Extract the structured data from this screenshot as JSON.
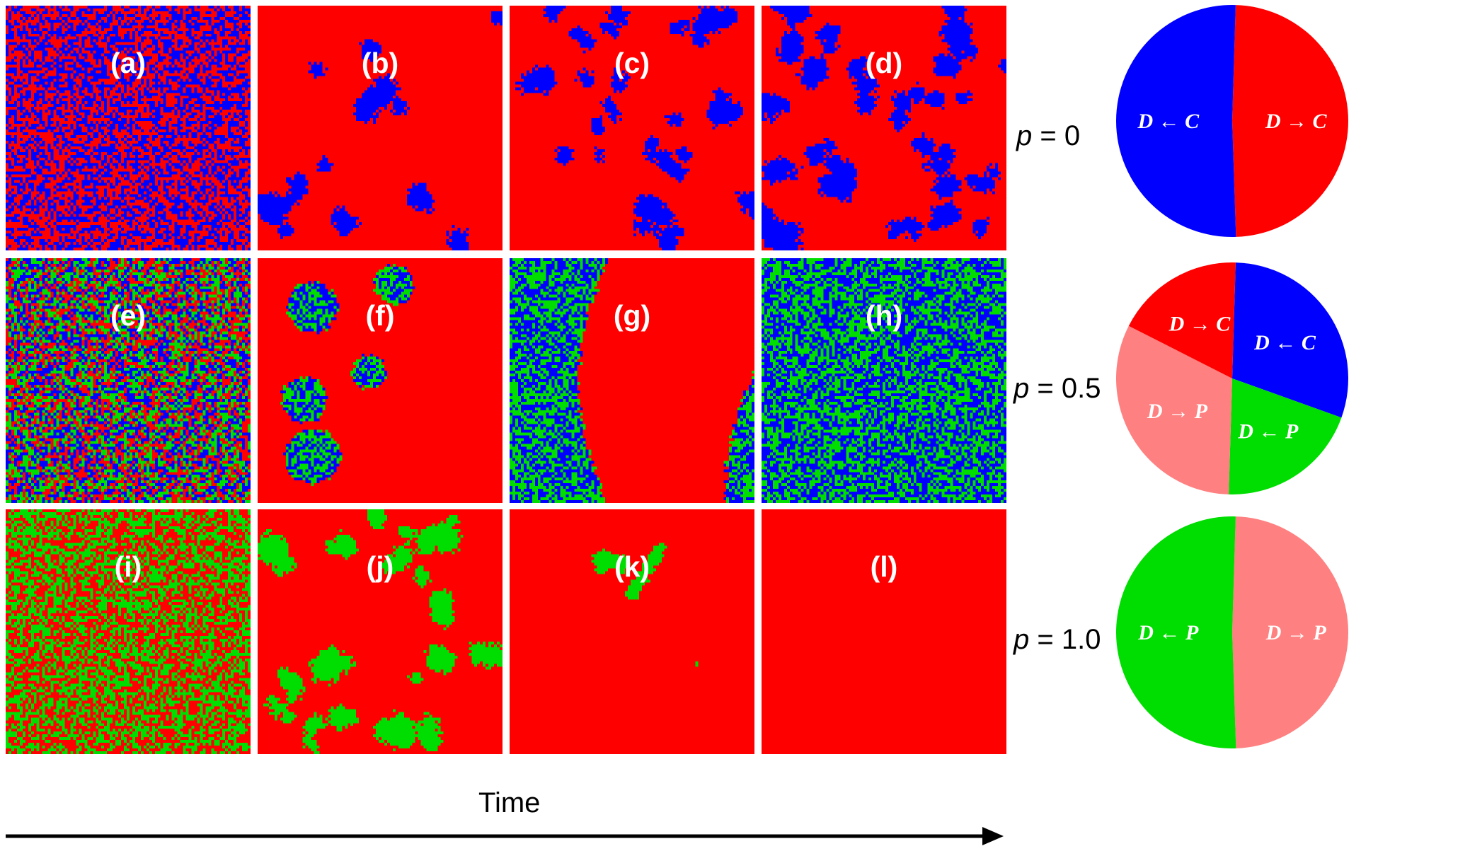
{
  "colors": {
    "red": "#ff0000",
    "blue": "#0000ff",
    "green": "#00dd00",
    "pink": "#ff8080"
  },
  "panels": [
    {
      "label": "(a)",
      "pattern": "mixed",
      "colors": [
        "red",
        "blue"
      ]
    },
    {
      "label": "(b)",
      "pattern": "clusters",
      "colors": [
        "red",
        "blue"
      ],
      "cluster_density": "sparse"
    },
    {
      "label": "(c)",
      "pattern": "clusters",
      "colors": [
        "red",
        "blue"
      ],
      "cluster_density": "medium"
    },
    {
      "label": "(d)",
      "pattern": "clusters",
      "colors": [
        "red",
        "blue"
      ],
      "cluster_density": "dense"
    },
    {
      "label": "(e)",
      "pattern": "mixed",
      "colors": [
        "red",
        "blue",
        "green"
      ]
    },
    {
      "label": "(f)",
      "pattern": "round_domains",
      "colors": [
        "red",
        "blue",
        "green"
      ]
    },
    {
      "label": "(g)",
      "pattern": "band",
      "colors": [
        "red",
        "blue",
        "green"
      ]
    },
    {
      "label": "(h)",
      "pattern": "mixed",
      "colors": [
        "blue",
        "green"
      ]
    },
    {
      "label": "(i)",
      "pattern": "mixed",
      "colors": [
        "red",
        "green"
      ]
    },
    {
      "label": "(j)",
      "pattern": "clusters",
      "colors": [
        "red",
        "green"
      ],
      "cluster_density": "medium"
    },
    {
      "label": "(k)",
      "pattern": "few_clusters",
      "colors": [
        "red",
        "green"
      ]
    },
    {
      "label": "(l)",
      "pattern": "uniform",
      "colors": [
        "red"
      ]
    }
  ],
  "rows": [
    {
      "p_symbol": "p",
      "p_value": " = 0"
    },
    {
      "p_symbol": "p",
      "p_value": " = 0.5"
    },
    {
      "p_symbol": "p",
      "p_value": " = 1.0"
    }
  ],
  "pies": [
    {
      "slices": [
        {
          "label": "D → C",
          "color": "red",
          "fraction": 0.49
        },
        {
          "label": "D ← C",
          "color": "blue",
          "fraction": 0.51
        }
      ]
    },
    {
      "slices": [
        {
          "label": "D ← C",
          "color": "blue",
          "fraction": 0.3
        },
        {
          "label": "D ← P",
          "color": "green",
          "fraction": 0.2
        },
        {
          "label": "D → P",
          "color": "pink",
          "fraction": 0.32
        },
        {
          "label": "D → C",
          "color": "red",
          "fraction": 0.18
        }
      ]
    },
    {
      "slices": [
        {
          "label": "D → P",
          "color": "pink",
          "fraction": 0.49
        },
        {
          "label": "D ← P",
          "color": "green",
          "fraction": 0.51
        }
      ]
    }
  ],
  "time_label": "Time"
}
